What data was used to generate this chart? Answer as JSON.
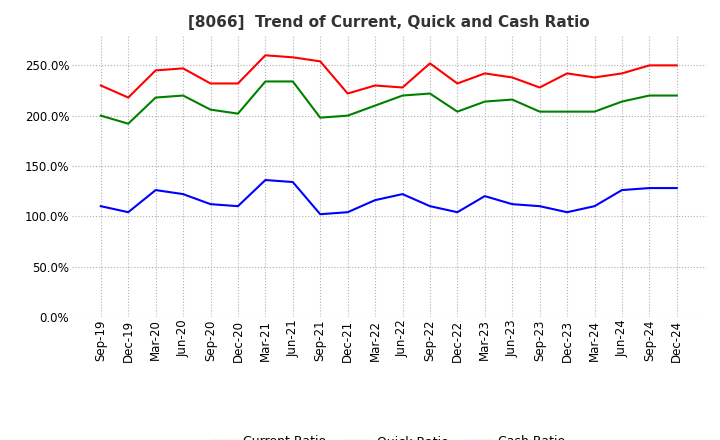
{
  "title": "[8066]  Trend of Current, Quick and Cash Ratio",
  "labels": [
    "Sep-19",
    "Dec-19",
    "Mar-20",
    "Jun-20",
    "Sep-20",
    "Dec-20",
    "Mar-21",
    "Jun-21",
    "Sep-21",
    "Dec-21",
    "Mar-22",
    "Jun-22",
    "Sep-22",
    "Dec-22",
    "Mar-23",
    "Jun-23",
    "Sep-23",
    "Dec-23",
    "Mar-24",
    "Jun-24",
    "Sep-24",
    "Dec-24"
  ],
  "current_ratio": [
    2.3,
    2.18,
    2.45,
    2.47,
    2.32,
    2.32,
    2.6,
    2.58,
    2.54,
    2.22,
    2.3,
    2.28,
    2.52,
    2.32,
    2.42,
    2.38,
    2.28,
    2.42,
    2.38,
    2.42,
    2.5,
    2.5
  ],
  "quick_ratio": [
    2.0,
    1.92,
    2.18,
    2.2,
    2.06,
    2.02,
    2.34,
    2.34,
    1.98,
    2.0,
    2.1,
    2.2,
    2.22,
    2.04,
    2.14,
    2.16,
    2.04,
    2.04,
    2.04,
    2.14,
    2.2,
    2.2
  ],
  "cash_ratio": [
    1.1,
    1.04,
    1.26,
    1.22,
    1.12,
    1.1,
    1.36,
    1.34,
    1.02,
    1.04,
    1.16,
    1.22,
    1.1,
    1.04,
    1.2,
    1.12,
    1.1,
    1.04,
    1.1,
    1.26,
    1.28,
    1.28
  ],
  "current_color": "#ff0000",
  "quick_color": "#008000",
  "cash_color": "#0000ff",
  "ylim": [
    0.0,
    2.8
  ],
  "yticks": [
    0.0,
    0.5,
    1.0,
    1.5,
    2.0,
    2.5
  ],
  "background_color": "#ffffff",
  "grid_color": "#b0b0b0",
  "title_fontsize": 11,
  "tick_fontsize": 8.5,
  "legend_fontsize": 9
}
